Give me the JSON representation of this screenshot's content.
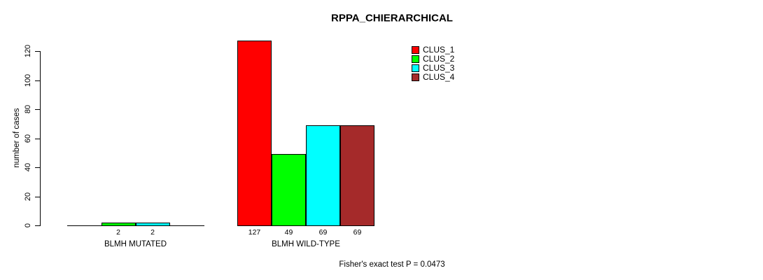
{
  "chart_data": {
    "type": "bar",
    "title": "RPPA_CHIERARCHICAL",
    "xlabel": "",
    "ylabel": "number of cases",
    "ylim": [
      0,
      120
    ],
    "yticks": [
      0,
      20,
      40,
      60,
      80,
      100,
      120
    ],
    "categories": [
      "BLMH MUTATED",
      "BLMH WILD-TYPE"
    ],
    "series": [
      {
        "name": "CLUS_1",
        "color": "#FF0000",
        "values": [
          0,
          127
        ]
      },
      {
        "name": "CLUS_2",
        "color": "#00FF00",
        "values": [
          2,
          49
        ]
      },
      {
        "name": "CLUS_3",
        "color": "#00FFFF",
        "values": [
          2,
          69
        ]
      },
      {
        "name": "CLUS_4",
        "color": "#A52A2A",
        "values": [
          0,
          69
        ]
      }
    ],
    "bar_value_labels": [
      [
        "",
        "2",
        "2",
        ""
      ],
      [
        "127",
        "49",
        "69",
        "69"
      ]
    ],
    "annotation": "Fisher's exact test P = 0.0473",
    "legend_position": "top-right",
    "legend_entries": [
      "CLUS_1",
      "CLUS_2",
      "CLUS_3",
      "CLUS_4"
    ],
    "grid": false,
    "background_color": "#FFFFFF",
    "text_color": "#000000"
  }
}
